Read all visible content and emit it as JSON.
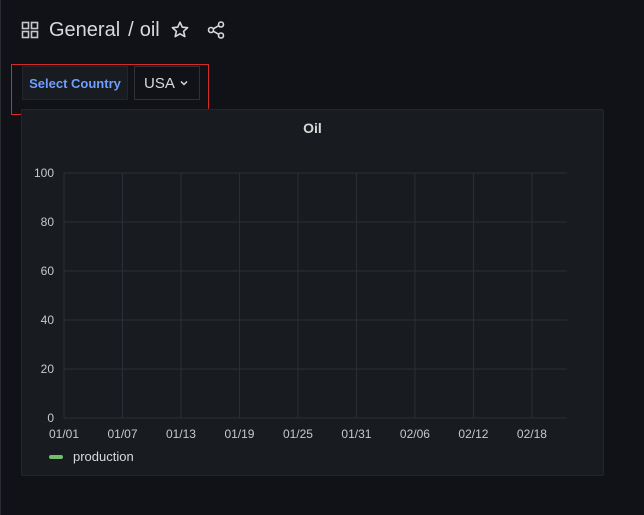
{
  "header": {
    "folder": "General",
    "separator": "/",
    "dashboard": "oil",
    "icons": [
      "dashboard-grid-icon",
      "star-icon",
      "share-icon"
    ]
  },
  "variable": {
    "label": "Select Country",
    "value": "USA",
    "highlight_color": "#d42a2a"
  },
  "panel": {
    "title": "Oil"
  },
  "chart_data": {
    "type": "line",
    "title": "Oil",
    "xlabel": "",
    "ylabel": "",
    "x_ticks": [
      "01/01",
      "01/07",
      "01/13",
      "01/19",
      "01/25",
      "01/31",
      "02/06",
      "02/12",
      "02/18"
    ],
    "y_ticks": [
      0,
      20,
      40,
      60,
      80,
      100
    ],
    "ylim": [
      0,
      100
    ],
    "grid": true,
    "legend": "bottom-left",
    "series": [
      {
        "name": "production",
        "color": "#73bf69",
        "values": []
      }
    ]
  }
}
